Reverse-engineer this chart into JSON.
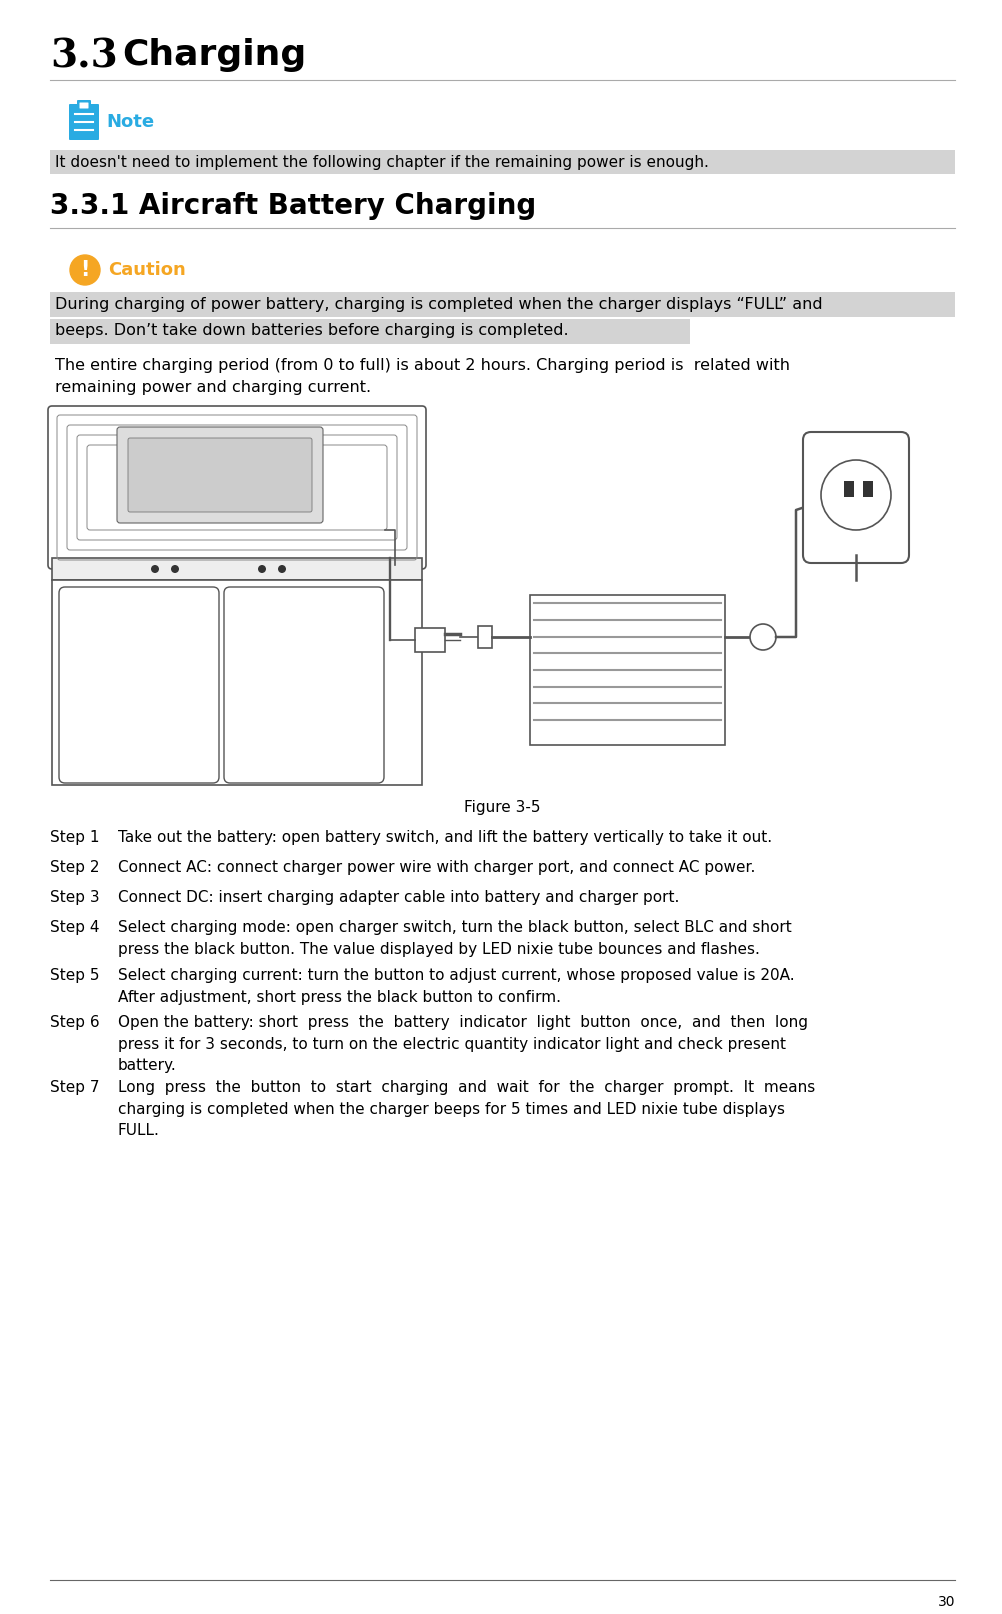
{
  "title_num": "3.3",
  "title_word": "Charging",
  "section_title": "3.3.1 Aircraft Battery Charging",
  "note_text": "It doesn't need to implement the following chapter if the remaining power is enough.",
  "caution_line1": "During charging of power battery, charging is completed when the charger displays “FULL” and",
  "caution_line2": "beeps. Don’t take down batteries before charging is completed.",
  "para_line1": "The entire charging period (from 0 to full) is about 2 hours. Charging period is  related with",
  "para_line2": "remaining power and charging current.",
  "figure_label": "Figure 3-5",
  "steps": [
    [
      "Step 1",
      "Take out the battery: open battery switch, and lift the battery vertically to take it out."
    ],
    [
      "Step 2",
      "Connect AC: connect charger power wire with charger port, and connect AC power."
    ],
    [
      "Step 3",
      "Connect DC: insert charging adapter cable into battery and charger port."
    ],
    [
      "Step 4",
      "Select charging mode: open charger switch, turn the black button, select BLC and short\npress the black button. The value displayed by LED nixie tube bounces and flashes."
    ],
    [
      "Step 5",
      "Select charging current: turn the button to adjust current, whose proposed value is 20A.\nAfter adjustment, short press the black button to confirm."
    ],
    [
      "Step 6",
      "Open the battery: short  press  the  battery  indicator  light  button  once,  and  then  long\npress it for 3 seconds, to turn on the electric quantity indicator light and check present\nbattery."
    ],
    [
      "Step 7",
      "Long  press  the  button  to  start  charging  and  wait  for  the  charger  prompt.  It  means\ncharging is completed when the charger beeps for 5 times and LED nixie tube displays\nFULL."
    ]
  ],
  "page_number": "30",
  "bg_color": "#ffffff",
  "text_color": "#000000",
  "note_color": "#29abe2",
  "caution_color": "#f5a623",
  "highlight_color": "#d3d3d3",
  "line_color": "#aaaaaa"
}
